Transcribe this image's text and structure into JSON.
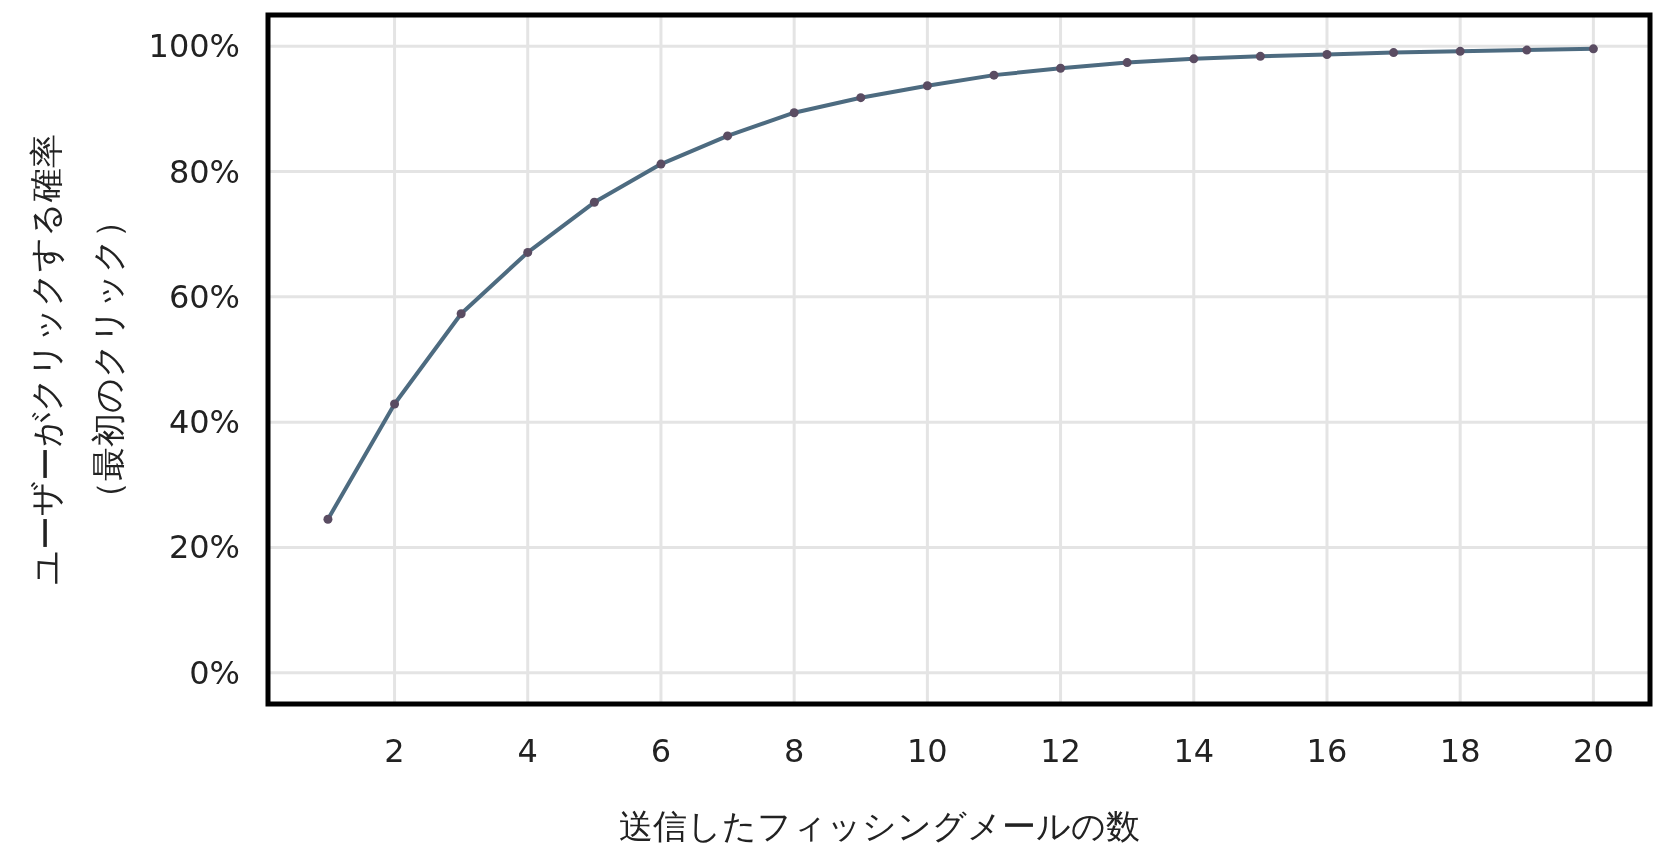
{
  "chart_data": {
    "type": "line",
    "xlabel": "送信したフィッシングメールの数",
    "ylabel": "ユーザーがクリックする確率（最初のクリック）",
    "x": [
      1,
      2,
      3,
      4,
      5,
      6,
      7,
      8,
      9,
      10,
      11,
      12,
      13,
      14,
      15,
      16,
      17,
      18,
      19,
      20
    ],
    "series": [
      {
        "color": "#4d6b80",
        "values": [
          24.5,
          42.9,
          57.3,
          67.1,
          75.1,
          81.2,
          85.7,
          89.4,
          91.8,
          93.7,
          95.4,
          96.5,
          97.4,
          98.0,
          98.4,
          98.7,
          99.0,
          99.2,
          99.4,
          99.6
        ]
      }
    ],
    "xlim": [
      0.1,
      20.85
    ],
    "ylim": [
      -5,
      105
    ],
    "xticks": [
      2,
      4,
      6,
      8,
      10,
      12,
      14,
      16,
      18,
      20
    ],
    "yticks": [
      {
        "value": 0,
        "label": "0%"
      },
      {
        "value": 20,
        "label": "20%"
      },
      {
        "value": 40,
        "label": "40%"
      },
      {
        "value": 60,
        "label": "60%"
      },
      {
        "value": 80,
        "label": "80%"
      },
      {
        "value": 100,
        "label": "100%"
      }
    ],
    "grid": true,
    "marker": "circle",
    "line_style": "solid"
  }
}
